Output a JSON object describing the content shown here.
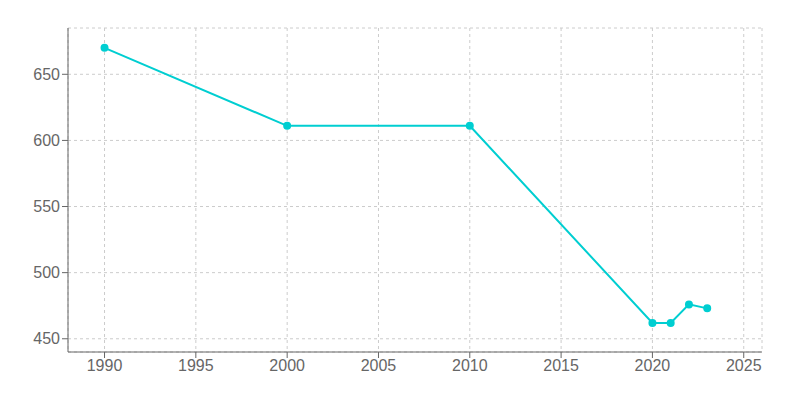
{
  "chart_data": {
    "type": "line",
    "x": [
      1990,
      2000,
      2010,
      2020,
      2021,
      2022,
      2023
    ],
    "values": [
      670,
      611,
      611,
      462,
      462,
      476,
      473
    ],
    "color": "#00CED1",
    "marker": "circle",
    "xlim": [
      1988,
      2026
    ],
    "ylim": [
      440,
      685
    ],
    "xticks": [
      1990,
      1995,
      2000,
      2005,
      2010,
      2015,
      2020,
      2025
    ],
    "yticks": [
      450,
      500,
      550,
      600,
      650
    ],
    "grid": true
  }
}
